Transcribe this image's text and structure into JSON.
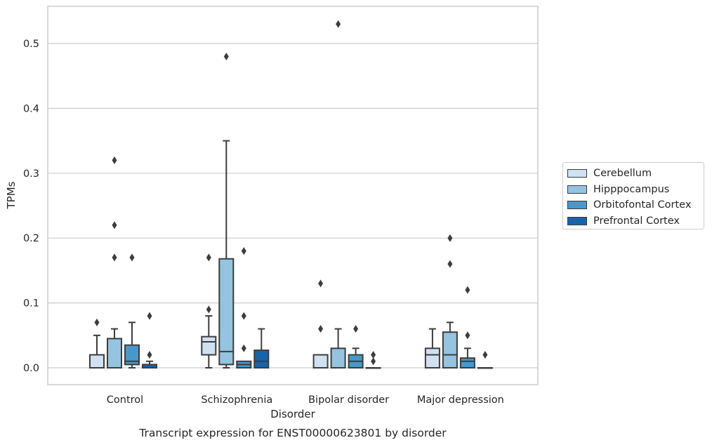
{
  "chart_data": {
    "type": "box",
    "title": "Transcript expression for ENST00000623801 by disorder",
    "xlabel": "Disorder",
    "ylabel": "TPMs",
    "ylim": [
      -0.025,
      0.558
    ],
    "yticks": [
      0.0,
      0.1,
      0.2,
      0.3,
      0.4,
      0.5
    ],
    "ytick_labels": [
      "0.0",
      "0.1",
      "0.2",
      "0.3",
      "0.4",
      "0.5"
    ],
    "grid": true,
    "legend_position": "outside-right",
    "categories": [
      "Control",
      "Schizophrenia",
      "Bipolar disorder",
      "Major depression"
    ],
    "series": [
      {
        "name": "Cerebellum",
        "color": "#d0e1f2",
        "boxes": [
          {
            "q1": 0.0,
            "median": 0.0,
            "q3": 0.02,
            "whisker_low": 0.0,
            "whisker_high": 0.05,
            "outliers": [
              0.07
            ]
          },
          {
            "q1": 0.02,
            "median": 0.04,
            "q3": 0.048,
            "whisker_low": 0.0,
            "whisker_high": 0.08,
            "outliers": [
              0.09,
              0.17
            ]
          },
          {
            "q1": 0.0,
            "median": 0.0,
            "q3": 0.02,
            "whisker_low": 0.0,
            "whisker_high": 0.02,
            "outliers": [
              0.06,
              0.13
            ]
          },
          {
            "q1": 0.0,
            "median": 0.02,
            "q3": 0.03,
            "whisker_low": 0.0,
            "whisker_high": 0.06,
            "outliers": []
          }
        ]
      },
      {
        "name": "Hipppocampus",
        "color": "#94c4df",
        "boxes": [
          {
            "q1": 0.0,
            "median": 0.0,
            "q3": 0.045,
            "whisker_low": 0.0,
            "whisker_high": 0.06,
            "outliers": [
              0.17,
              0.22,
              0.32
            ]
          },
          {
            "q1": 0.005,
            "median": 0.025,
            "q3": 0.168,
            "whisker_low": 0.0,
            "whisker_high": 0.35,
            "outliers": [
              0.48
            ]
          },
          {
            "q1": 0.0,
            "median": 0.0,
            "q3": 0.03,
            "whisker_low": 0.0,
            "whisker_high": 0.06,
            "outliers": [
              0.53
            ]
          },
          {
            "q1": 0.0,
            "median": 0.02,
            "q3": 0.055,
            "whisker_low": 0.0,
            "whisker_high": 0.07,
            "outliers": [
              0.16,
              0.2
            ]
          }
        ]
      },
      {
        "name": "Orbitofontal Cortex",
        "color": "#4a98c9",
        "boxes": [
          {
            "q1": 0.005,
            "median": 0.01,
            "q3": 0.035,
            "whisker_low": 0.0,
            "whisker_high": 0.07,
            "outliers": [
              0.17
            ]
          },
          {
            "q1": 0.0,
            "median": 0.005,
            "q3": 0.01,
            "whisker_low": 0.0,
            "whisker_high": 0.01,
            "outliers": [
              0.03,
              0.08,
              0.18
            ]
          },
          {
            "q1": 0.0,
            "median": 0.01,
            "q3": 0.02,
            "whisker_low": 0.0,
            "whisker_high": 0.03,
            "outliers": [
              0.06
            ]
          },
          {
            "q1": 0.0,
            "median": 0.01,
            "q3": 0.015,
            "whisker_low": 0.0,
            "whisker_high": 0.03,
            "outliers": [
              0.05,
              0.12
            ]
          }
        ]
      },
      {
        "name": "Prefrontal Cortex",
        "color": "#1764ab",
        "boxes": [
          {
            "q1": 0.0,
            "median": 0.0,
            "q3": 0.005,
            "whisker_low": 0.0,
            "whisker_high": 0.01,
            "outliers": [
              0.02,
              0.08
            ]
          },
          {
            "q1": 0.0,
            "median": 0.01,
            "q3": 0.027,
            "whisker_low": 0.0,
            "whisker_high": 0.06,
            "outliers": []
          },
          {
            "q1": 0.0,
            "median": 0.0,
            "q3": 0.0,
            "whisker_low": 0.0,
            "whisker_high": 0.0,
            "outliers": [
              0.01,
              0.02
            ]
          },
          {
            "q1": 0.0,
            "median": 0.0,
            "q3": 0.0,
            "whisker_low": 0.0,
            "whisker_high": 0.0,
            "outliers": [
              0.02
            ]
          }
        ]
      }
    ]
  }
}
